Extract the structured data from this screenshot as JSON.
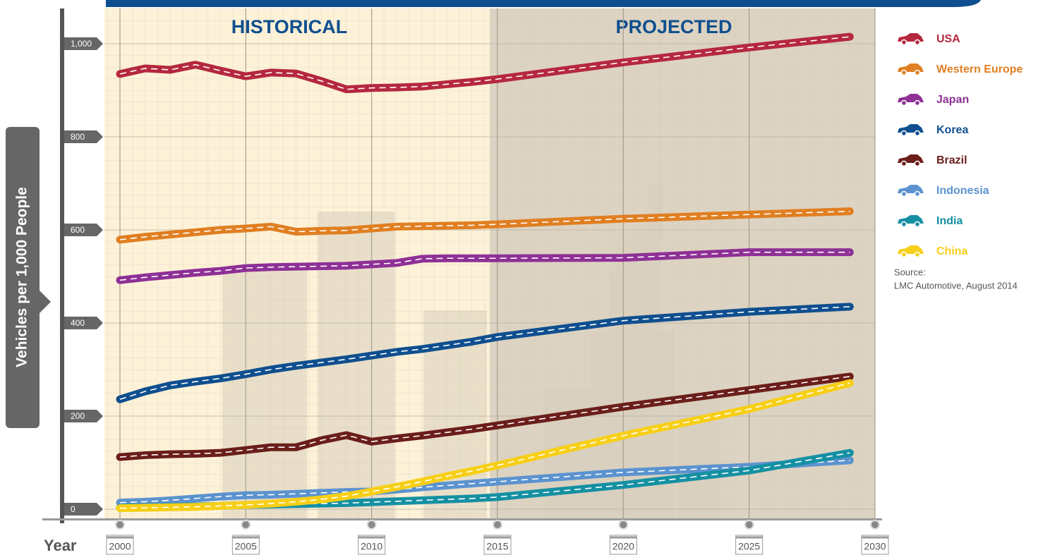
{
  "chart_data": {
    "type": "line",
    "y_label": "Vehicles per 1,000 People",
    "x_label": "Year",
    "annotations": [
      "HISTORICAL",
      "PROJECTED"
    ],
    "source": [
      "Source:",
      "LMC Automotive, August 2014"
    ],
    "x": [
      2000,
      2001,
      2002,
      2003,
      2004,
      2005,
      2006,
      2007,
      2008,
      2009,
      2010,
      2011,
      2012,
      2013,
      2014,
      2015,
      2020,
      2025,
      2029
    ],
    "xlim": [
      2000,
      2030
    ],
    "xticks": [
      2000,
      2005,
      2010,
      2015,
      2020,
      2025,
      2030
    ],
    "ylim": [
      0,
      1000
    ],
    "yticks": [
      0,
      200,
      400,
      600,
      800,
      {
        "value": 1000,
        "label": "1,000"
      }
    ],
    "grid": true,
    "series": [
      {
        "name": "USA",
        "color": "#b5283f",
        "values": [
          935,
          947,
          944,
          955,
          942,
          930,
          938,
          936,
          920,
          902,
          905,
          906,
          908,
          913,
          918,
          924,
          960,
          992,
          1015
        ]
      },
      {
        "name": "Western Europe",
        "color": "#e07f22",
        "values": [
          579,
          585,
          590,
          595,
          600,
          603,
          607,
          596,
          598,
          599,
          603,
          607,
          608,
          609,
          610,
          612,
          624,
          633,
          640
        ]
      },
      {
        "name": "Japan",
        "color": "#8e3096",
        "values": [
          492,
          498,
          503,
          508,
          512,
          518,
          520,
          521,
          522,
          523,
          526,
          529,
          538,
          539,
          539,
          539,
          540,
          552,
          552
        ]
      },
      {
        "name": "Korea",
        "color": "#0f4f8f",
        "values": [
          236,
          253,
          266,
          274,
          281,
          290,
          300,
          308,
          315,
          322,
          330,
          338,
          344,
          352,
          360,
          370,
          405,
          424,
          435
        ]
      },
      {
        "name": "Brazil",
        "color": "#6b1e1a",
        "values": [
          112,
          116,
          118,
          119,
          121,
          127,
          133,
          133,
          148,
          159,
          145,
          152,
          158,
          165,
          172,
          180,
          220,
          256,
          285
        ]
      },
      {
        "name": "Indonesia",
        "color": "#5b93cf",
        "values": [
          14,
          16,
          19,
          23,
          27,
          30,
          31,
          33,
          35,
          37,
          38,
          42,
          47,
          51,
          55,
          59,
          79,
          91,
          105
        ]
      },
      {
        "name": "India",
        "color": "#1590a3",
        "values": [
          3,
          4,
          5,
          6,
          7,
          9,
          10,
          11,
          12,
          13,
          15,
          17,
          19,
          21,
          23,
          26,
          52,
          83,
          121
        ]
      },
      {
        "name": "China",
        "color": "#f7cf17",
        "values": [
          2,
          3,
          4,
          5,
          7,
          9,
          12,
          16,
          21,
          28,
          38,
          48,
          59,
          71,
          82,
          94,
          158,
          215,
          271
        ]
      }
    ]
  }
}
